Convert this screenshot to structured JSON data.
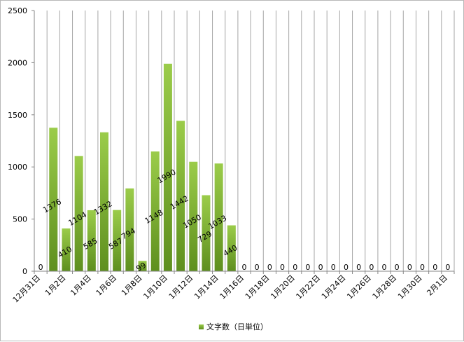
{
  "chart_data": {
    "type": "bar",
    "title": "",
    "xlabel": "",
    "ylabel": "",
    "ylim": [
      0,
      2500
    ],
    "yticks": [
      0,
      500,
      1000,
      1500,
      2000,
      2500
    ],
    "grid": "vertical",
    "legend_position": "bottom",
    "categories": [
      "12月31日",
      "1月1日",
      "1月2日",
      "1月3日",
      "1月4日",
      "1月5日",
      "1月6日",
      "1月7日",
      "1月8日",
      "1月9日",
      "1月10日",
      "1月11日",
      "1月12日",
      "1月13日",
      "1月14日",
      "1月15日",
      "1月16日",
      "1月17日",
      "1月18日",
      "1月19日",
      "1月20日",
      "1月21日",
      "1月22日",
      "1月23日",
      "1月24日",
      "1月25日",
      "1月26日",
      "1月27日",
      "1月28日",
      "1月29日",
      "1月30日",
      "1月31日",
      "2月1日"
    ],
    "xtick_labels": [
      "12月31日",
      "1月2日",
      "1月4日",
      "1月6日",
      "1月8日",
      "1月10日",
      "1月12日",
      "1月14日",
      "1月16日",
      "1月18日",
      "1月20日",
      "1月22日",
      "1月24日",
      "1月26日",
      "1月28日",
      "1月30日",
      "2月1日"
    ],
    "series": [
      {
        "name": "文字数（日単位）",
        "color_top": "#9bcc4a",
        "color_bottom": "#5e8f1e",
        "values": [
          0,
          1376,
          410,
          1104,
          585,
          1332,
          587,
          794,
          99,
          1148,
          1990,
          1442,
          1050,
          729,
          1033,
          440,
          0,
          0,
          0,
          0,
          0,
          0,
          0,
          0,
          0,
          0,
          0,
          0,
          0,
          0,
          0,
          0,
          0
        ]
      }
    ]
  }
}
